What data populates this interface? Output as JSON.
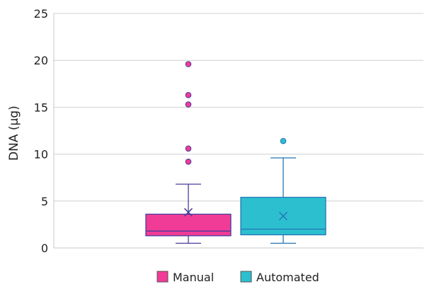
{
  "chart_data": {
    "type": "box",
    "ylabel": "DNA (µg)",
    "xlabel": "",
    "ylim": [
      0,
      25
    ],
    "yticks": [
      0,
      5,
      10,
      15,
      20,
      25
    ],
    "grid": true,
    "legend_position": "bottom",
    "series": [
      {
        "name": "Manual",
        "color": "#f03c96",
        "edge_color": "#4a3c9c",
        "min": 0.5,
        "q1": 1.3,
        "median": 1.8,
        "q3": 3.6,
        "max": 6.8,
        "mean": 3.8,
        "outliers": [
          9.2,
          10.6,
          15.3,
          16.3,
          19.6
        ]
      },
      {
        "name": "Automated",
        "color": "#2cbfd0",
        "edge_color": "#2577b5",
        "min": 0.5,
        "q1": 1.4,
        "median": 2.0,
        "q3": 5.4,
        "max": 9.6,
        "mean": 3.4,
        "outliers": [
          11.4
        ]
      }
    ]
  }
}
